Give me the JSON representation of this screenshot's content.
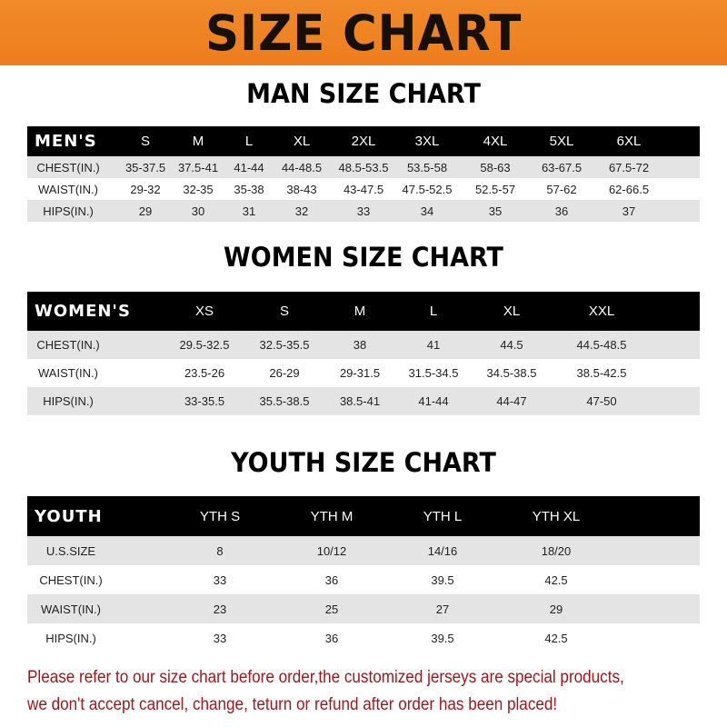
{
  "banner": "SIZE CHART",
  "men": {
    "title": "MAN SIZE CHART",
    "header": "MEN'S",
    "sizes": [
      "S",
      "M",
      "L",
      "XL",
      "2XL",
      "3XL",
      "4XL",
      "5XL",
      "6XL"
    ],
    "rows": [
      {
        "label": "CHEST(IN.)",
        "values": [
          "35-37.5",
          "37.5-41",
          "41-44",
          "44-48.5",
          "48.5-53.5",
          "53.5-58",
          "58-63",
          "63-67.5",
          "67.5-72"
        ]
      },
      {
        "label": "WAIST(IN.)",
        "values": [
          "29-32",
          "32-35",
          "35-38",
          "38-43",
          "43-47.5",
          "47.5-52.5",
          "52.5-57",
          "57-62",
          "62-66.5"
        ]
      },
      {
        "label": "HIPS(IN.)",
        "values": [
          "29",
          "30",
          "31",
          "32",
          "33",
          "34",
          "35",
          "36",
          "37"
        ]
      }
    ]
  },
  "women": {
    "title": "WOMEN SIZE CHART",
    "header": "WOMEN'S",
    "sizes": [
      "XS",
      "S",
      "M",
      "L",
      "XL",
      "XXL"
    ],
    "rows": [
      {
        "label": "CHEST(IN.)",
        "values": [
          "29.5-32.5",
          "32.5-35.5",
          "38",
          "41",
          "44.5",
          "44.5-48.5"
        ]
      },
      {
        "label": "WAIST(IN.)",
        "values": [
          "23.5-26",
          "26-29",
          "29-31.5",
          "31.5-34.5",
          "34.5-38.5",
          "38.5-42.5"
        ]
      },
      {
        "label": "HIPS(IN.)",
        "values": [
          "33-35.5",
          "35.5-38.5",
          "38.5-41",
          "41-44",
          "44-47",
          "47-50"
        ]
      }
    ]
  },
  "youth": {
    "title": "YOUTH SIZE CHART",
    "header": "YOUTH",
    "sizes": [
      "YTH S",
      "YTH M",
      "YTH L",
      "YTH XL"
    ],
    "rows": [
      {
        "label": "U.S.SIZE",
        "values": [
          "8",
          "10/12",
          "14/16",
          "18/20"
        ]
      },
      {
        "label": "CHEST(IN.)",
        "values": [
          "33",
          "36",
          "39.5",
          "42.5"
        ]
      },
      {
        "label": "WAIST(IN.)",
        "values": [
          "23",
          "25",
          "27",
          "29"
        ]
      },
      {
        "label": "HIPS(IN.)",
        "values": [
          "33",
          "36",
          "39.5",
          "42.5"
        ]
      }
    ]
  },
  "notice": [
    "Please refer to our size chart before order,the customized jerseys are special products,",
    "we don't accept cancel, change, teturn or refund after order has been placed!"
  ],
  "colors": {
    "banner": "#ee7d1c",
    "header_row": "#000000",
    "stripe": "#e4e4e4",
    "notice": "#a3161a"
  }
}
